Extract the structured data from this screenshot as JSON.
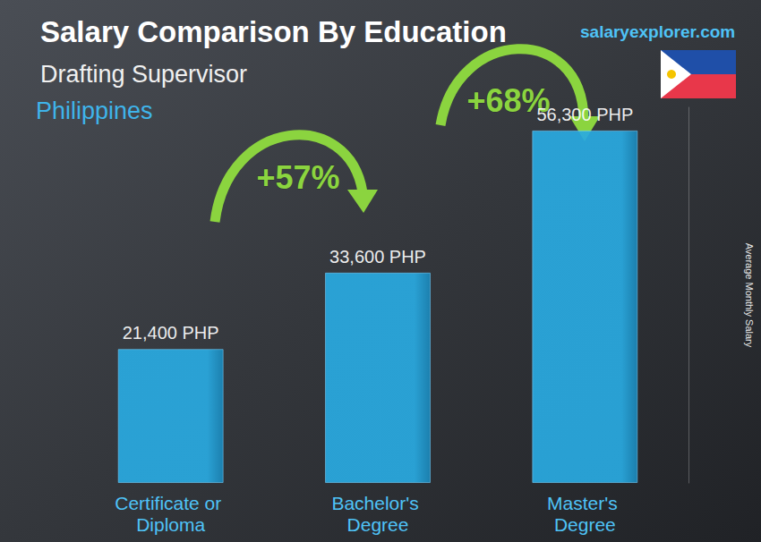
{
  "chart_data": {
    "type": "bar",
    "title": "Salary Comparison By Education",
    "subtitle": "Drafting Supervisor",
    "annotations": {
      "location": "Philippines",
      "source": "salaryexplorer.com",
      "changes": [
        "+57%",
        "+68%"
      ]
    },
    "y_label": "Average Monthly Salary",
    "categories": [
      "Certificate or Diploma",
      "Bachelor's Degree",
      "Master's Degree"
    ],
    "values": [
      21400,
      33600,
      56300
    ],
    "value_labels": [
      "21,400 PHP",
      "33,600 PHP",
      "56,300 PHP"
    ],
    "color": "#29aae1",
    "ylim": [
      0,
      60000
    ],
    "grid": false,
    "data_labels": true,
    "tick_labels": "x"
  }
}
